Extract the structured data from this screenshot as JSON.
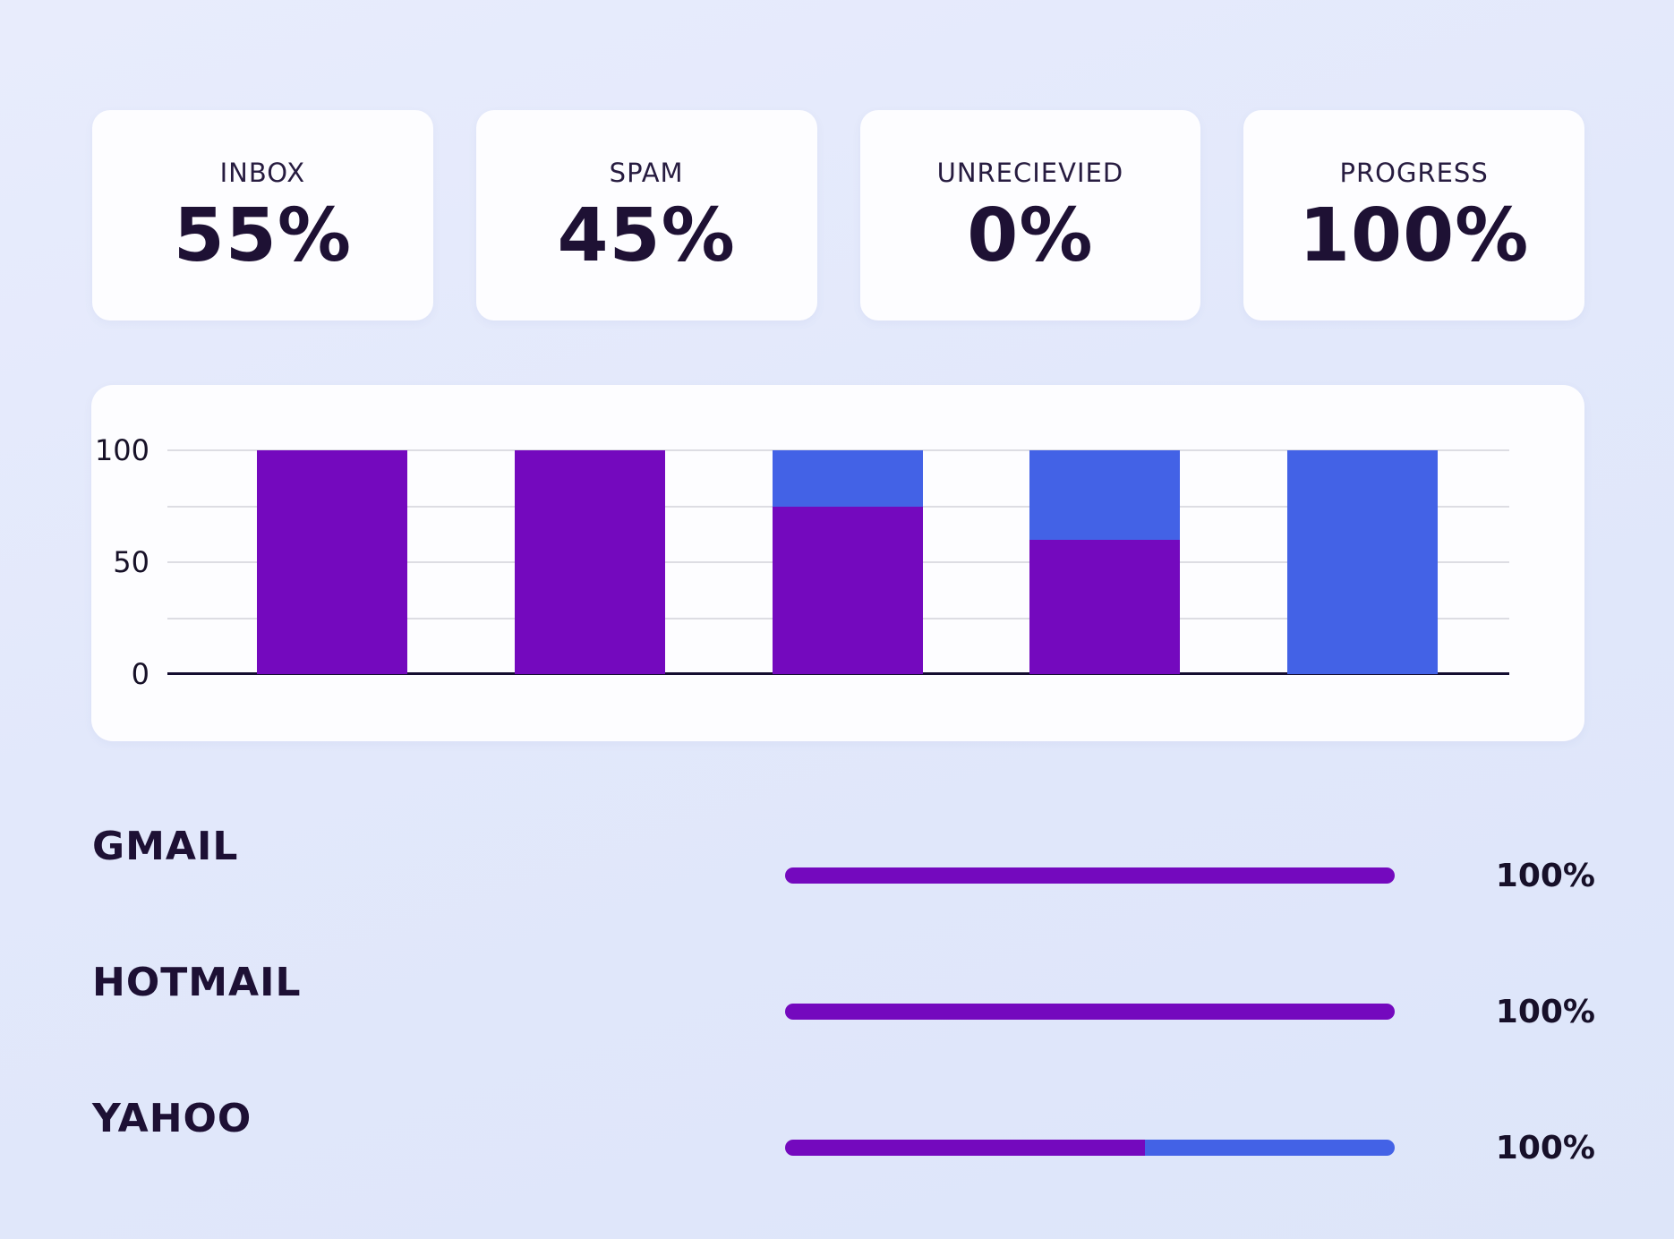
{
  "theme": {
    "purple": "#7409be",
    "blue": "#4362e6",
    "card_bg": "#fdfdff",
    "grid_gray": "#dddde3",
    "axis_line": "#140d30",
    "text_dark": "#1e1134"
  },
  "stat_cards": [
    {
      "label": "INBOX",
      "value": "55%"
    },
    {
      "label": "SPAM",
      "value": "45%"
    },
    {
      "label": "UNRECIEVIED",
      "value": "0%"
    },
    {
      "label": "PROGRESS",
      "value": "100%"
    }
  ],
  "chart_data": {
    "type": "bar",
    "stacked": true,
    "title": "",
    "xlabel": "",
    "ylabel": "",
    "categories": [
      "bar-1",
      "bar-2",
      "bar-3",
      "bar-4",
      "bar-5"
    ],
    "series": [
      {
        "name": "purple",
        "color": "#7409be",
        "values": [
          100,
          100,
          75,
          60,
          0
        ]
      },
      {
        "name": "blue",
        "color": "#4362e6",
        "values": [
          0,
          0,
          25,
          40,
          100
        ]
      }
    ],
    "ylim": [
      0,
      100
    ],
    "yticks": [
      0,
      50,
      100
    ],
    "gridline_step": 25,
    "grid": true,
    "legend": false,
    "x_tick_labels_visible": false
  },
  "providers": [
    {
      "name": "GMAIL",
      "percent_label": "100%",
      "segments": [
        {
          "color": "#7409be",
          "fraction": 1.0
        }
      ]
    },
    {
      "name": "HOTMAIL",
      "percent_label": "100%",
      "segments": [
        {
          "color": "#7409be",
          "fraction": 1.0
        }
      ]
    },
    {
      "name": "YAHOO",
      "percent_label": "100%",
      "segments": [
        {
          "color": "#7409be",
          "fraction": 0.59
        },
        {
          "color": "#4362e6",
          "fraction": 0.41
        }
      ]
    }
  ]
}
